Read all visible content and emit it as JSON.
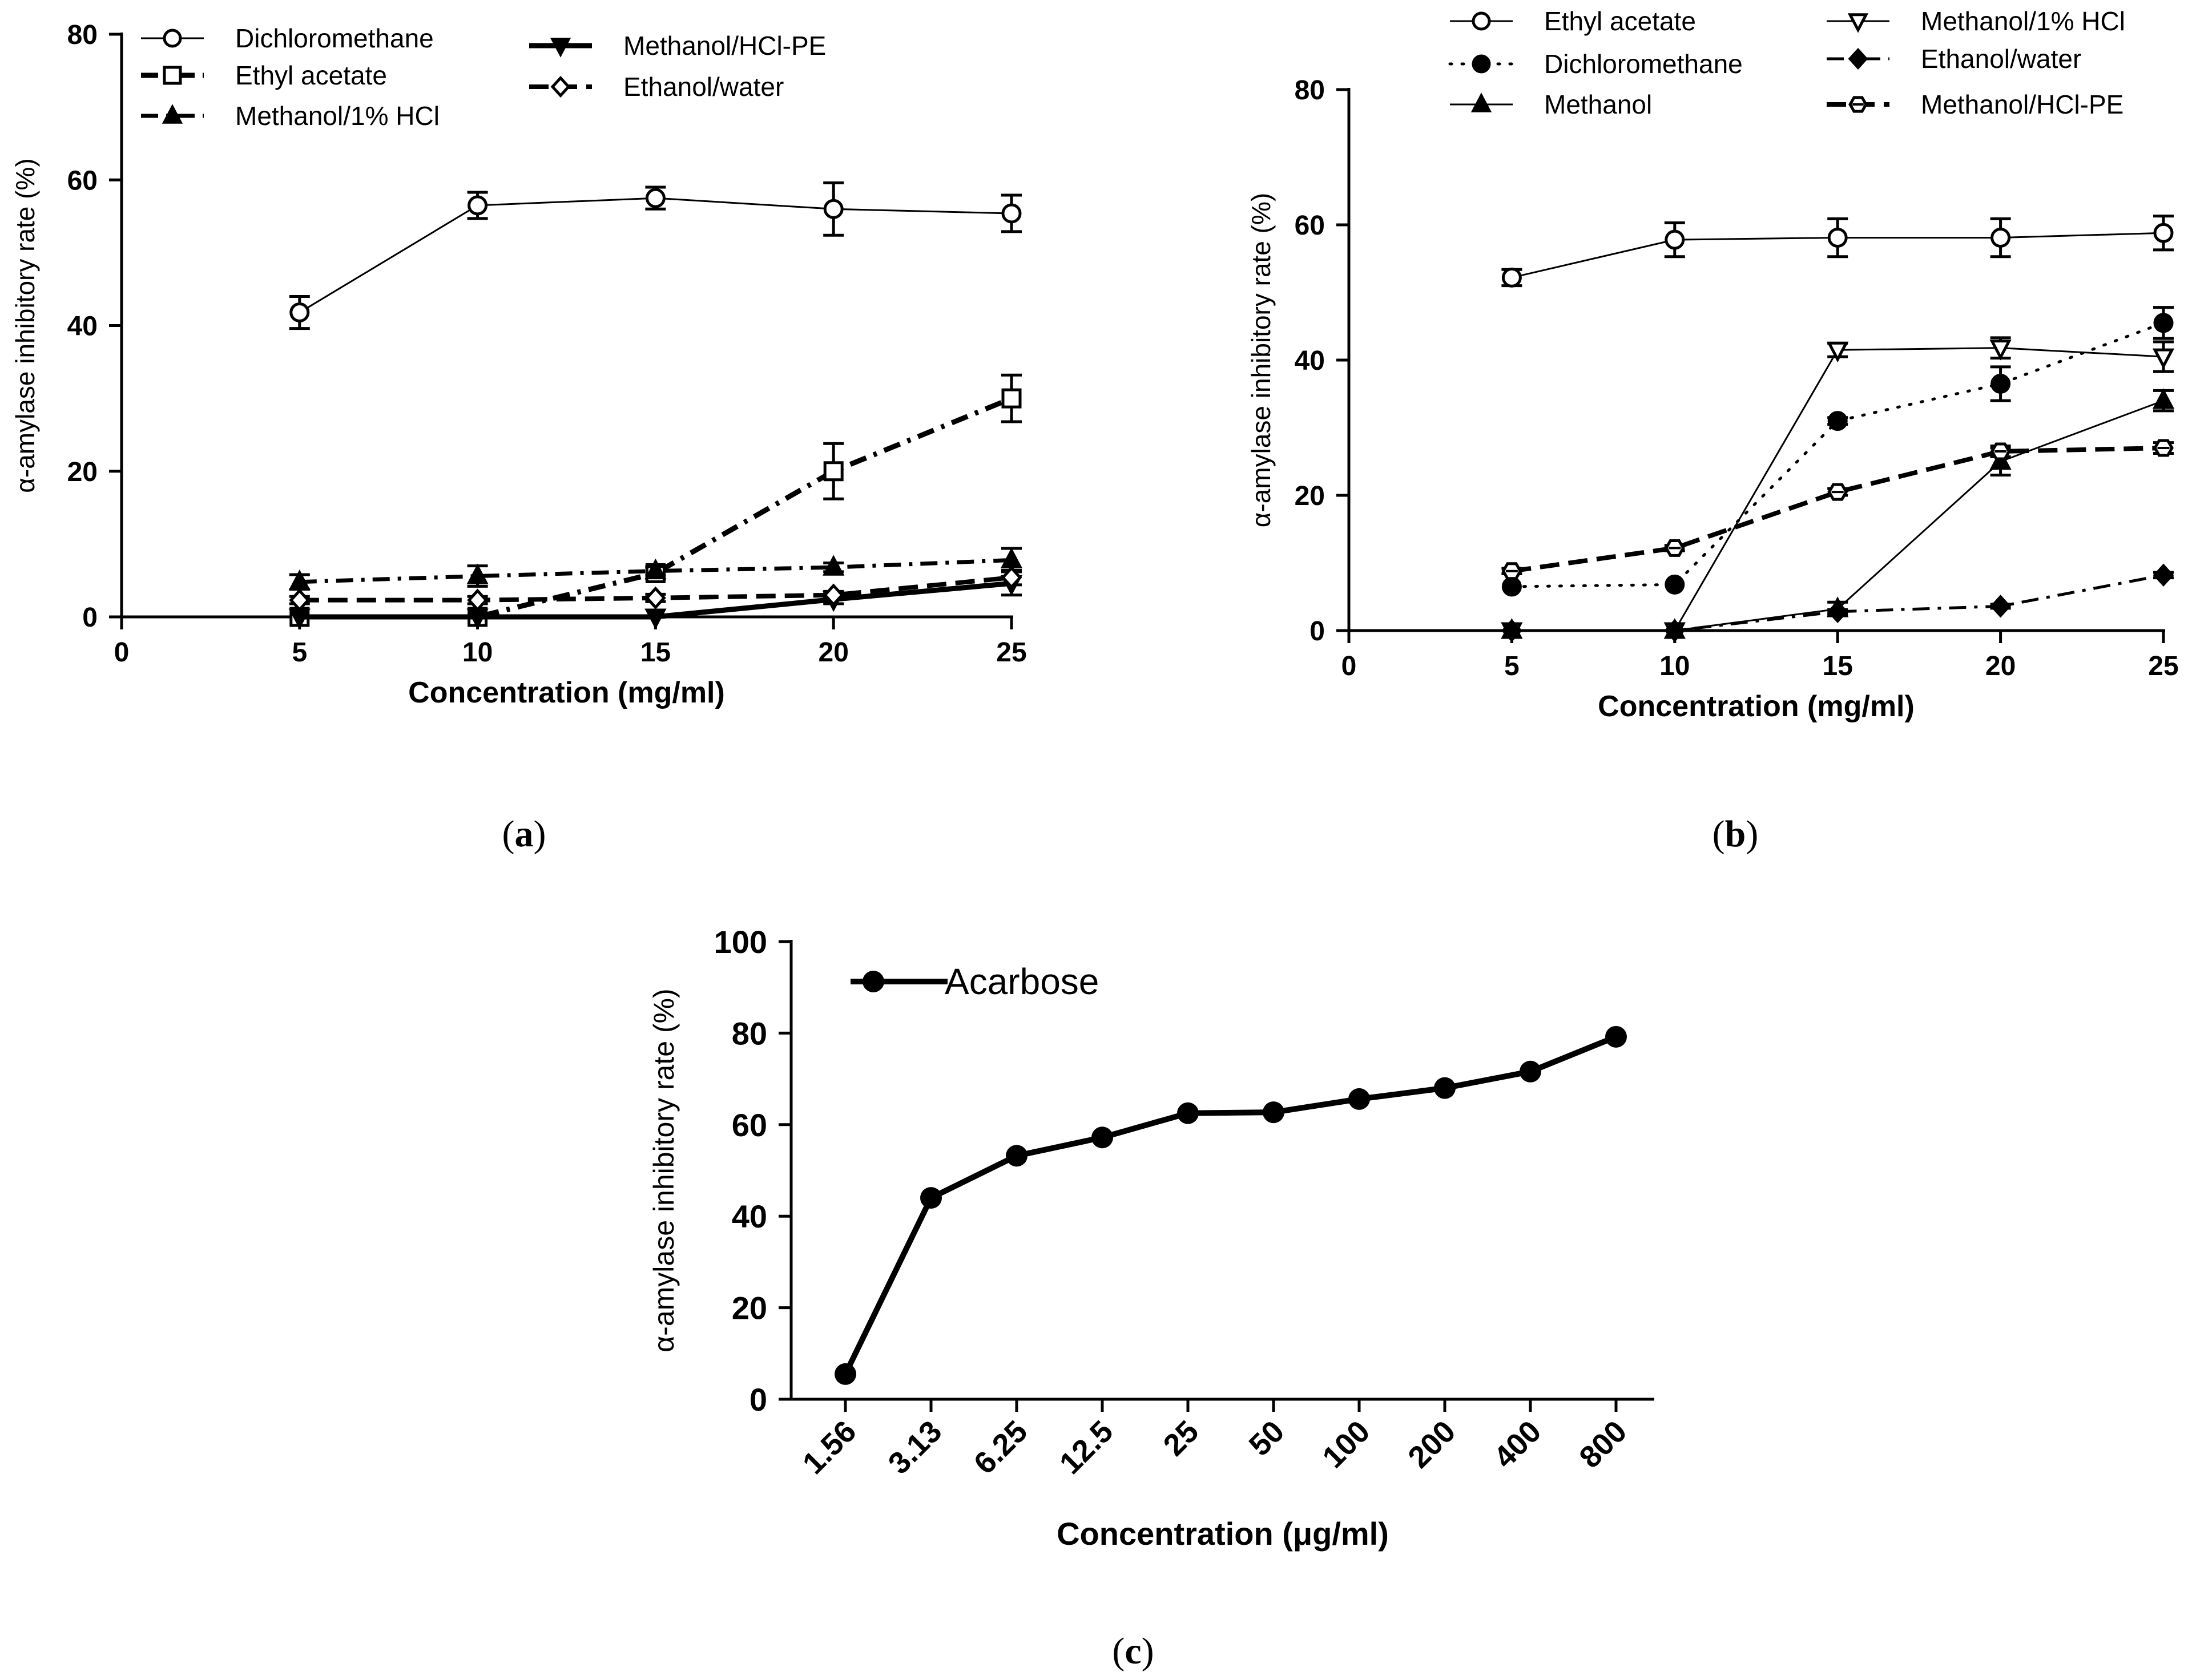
{
  "chart_data": [
    {
      "panel": "a",
      "panel_label": "a",
      "type": "line",
      "xlabel": "Concentration (mg/ml)",
      "ylabel": "α-amylase inhibitory rate (%)",
      "xlim": [
        0,
        25
      ],
      "ylim": [
        0,
        80
      ],
      "xticks": [
        "0",
        "5",
        "10",
        "15",
        "20",
        "25"
      ],
      "yticks": [
        "0",
        "20",
        "40",
        "60",
        "80"
      ],
      "legend_position": "top",
      "x": [
        5,
        10,
        15,
        20,
        25
      ],
      "series": [
        {
          "name": "Dichloromethane",
          "values": [
            41.8,
            56.5,
            57.5,
            56.0,
            55.4
          ],
          "errors": [
            2.2,
            1.8,
            1.5,
            3.6,
            2.5
          ],
          "marker": "circle-open",
          "line": "solid",
          "width": 3
        },
        {
          "name": "Ethyl acetate",
          "values": [
            0,
            0,
            6.0,
            20.0,
            30.0
          ],
          "errors": [
            0,
            0,
            0.8,
            3.8,
            3.2
          ],
          "marker": "square-open",
          "line": "dashdot",
          "width": 9
        },
        {
          "name": "Methanol/1% HCl",
          "values": [
            4.8,
            5.6,
            6.3,
            6.8,
            7.8
          ],
          "errors": [
            1.0,
            1.4,
            0.6,
            0.6,
            1.6
          ],
          "marker": "triangle",
          "line": "dashdot",
          "width": 7
        },
        {
          "name": "Methanol/HCl-PE",
          "values": [
            0,
            0,
            0,
            2.4,
            4.6
          ],
          "errors": [
            0,
            0,
            0,
            0.6,
            1.6
          ],
          "marker": "triangle-down",
          "line": "solid",
          "width": 9
        },
        {
          "name": "Ethanol/water",
          "values": [
            2.3,
            2.3,
            2.6,
            3.0,
            5.4
          ],
          "errors": [
            0.5,
            0.5,
            0.5,
            0.5,
            1.0
          ],
          "marker": "diamond-open",
          "line": "dashed",
          "width": 8
        }
      ]
    },
    {
      "panel": "b",
      "panel_label": "b",
      "type": "line",
      "xlabel": "Concentration (mg/ml)",
      "ylabel": "α-amylase inhibitory rate (%)",
      "xlim": [
        0,
        25
      ],
      "ylim": [
        0,
        80
      ],
      "xticks": [
        "0",
        "5",
        "10",
        "15",
        "20",
        "25"
      ],
      "yticks": [
        "0",
        "20",
        "40",
        "60",
        "80"
      ],
      "legend_position": "top",
      "x": [
        5,
        10,
        15,
        20,
        25
      ],
      "series": [
        {
          "name": "Ethyl acetate",
          "values": [
            52.2,
            57.8,
            58.1,
            58.1,
            58.8
          ],
          "errors": [
            1.2,
            2.5,
            2.8,
            2.8,
            2.5
          ],
          "marker": "circle-open",
          "line": "solid",
          "width": 3
        },
        {
          "name": "Dichloromethane",
          "values": [
            6.5,
            6.8,
            31.0,
            36.5,
            45.5
          ],
          "errors": [
            0,
            0,
            0.5,
            2.5,
            2.3
          ],
          "marker": "circle",
          "line": "dotted",
          "width": 5
        },
        {
          "name": "Methanol",
          "values": [
            0,
            0,
            3.2,
            25.0,
            34.0
          ],
          "errors": [
            0,
            0,
            1.0,
            2.0,
            1.5
          ],
          "marker": "triangle",
          "line": "solid",
          "width": 3
        },
        {
          "name": "Methanol/1% HCl",
          "values": [
            0,
            0,
            41.5,
            41.8,
            40.5
          ],
          "errors": [
            0,
            0,
            1.0,
            1.5,
            2.2
          ],
          "marker": "triangle-down-open",
          "line": "solid",
          "width": 3
        },
        {
          "name": "Ethanol/water",
          "values": [
            0,
            0,
            2.8,
            3.6,
            8.2
          ],
          "errors": [
            0,
            0,
            0.3,
            0.3,
            0.4
          ],
          "marker": "diamond",
          "line": "dashdot",
          "width": 5
        },
        {
          "name": "Methanol/HCl-PE",
          "values": [
            8.8,
            12.2,
            20.5,
            26.5,
            27.0
          ],
          "errors": [
            0.4,
            0.4,
            0.5,
            0.8,
            0.8
          ],
          "marker": "hexagon-open",
          "line": "dashed",
          "width": 8
        }
      ]
    },
    {
      "panel": "c",
      "panel_label": "c",
      "type": "line",
      "xlabel": "Concentration (μg/ml)",
      "ylabel": "α-amylase inhibitory rate (%)",
      "ylim": [
        0,
        100
      ],
      "yticks": [
        "0",
        "20",
        "40",
        "60",
        "80",
        "100"
      ],
      "categories": [
        "1.56",
        "3.13",
        "6.25",
        "12.5",
        "25",
        "50",
        "100",
        "200",
        "400",
        "800"
      ],
      "legend_position": "top-left",
      "series": [
        {
          "name": "Acarbose",
          "values": [
            5.5,
            44.0,
            53.2,
            57.2,
            62.5,
            62.7,
            65.6,
            68.0,
            71.6,
            79.2
          ],
          "marker": "circle",
          "line": "solid",
          "width": 10
        }
      ]
    }
  ]
}
